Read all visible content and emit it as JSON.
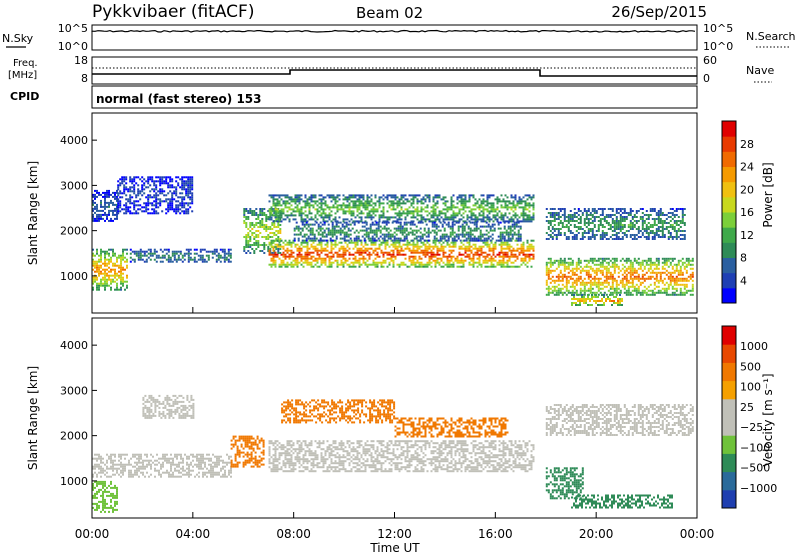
{
  "header": {
    "station": "Pykkvibaer (fitACF)",
    "beam": "Beam 02",
    "date": "26/Sep/2015"
  },
  "nsky_panel": {
    "label": "N.Sky",
    "right_label": "N.Search",
    "y_ticks_left": [
      "10^5",
      "10^0"
    ],
    "y_ticks_right": [
      "10^5",
      "10^0"
    ]
  },
  "freq_panel": {
    "label_line1": "Freq.",
    "label_line2": "[MHz]",
    "right_label": "Nave",
    "y_ticks_left": [
      "18",
      "8"
    ],
    "y_ticks_right": [
      "60",
      "0"
    ]
  },
  "cpid_panel": {
    "label": "CPID",
    "text": "normal (fast stereo) 153"
  },
  "chart_data": [
    {
      "type": "heatmap",
      "name": "power",
      "ylabel": "Slant Range [km]",
      "xlabel": "",
      "yticks": [
        "4000",
        "3000",
        "2000",
        "1000"
      ],
      "ylim": [
        180,
        4600
      ],
      "colorbar": {
        "label": "Power [dB]",
        "ticks": [
          "28",
          "24",
          "20",
          "16",
          "12",
          "8",
          "4"
        ],
        "colors": [
          "#0000ff",
          "#1e3fb4",
          "#2a5fa0",
          "#2e8b57",
          "#3fa94a",
          "#7ccf3a",
          "#c8d81e",
          "#f0c010",
          "#f59a00",
          "#f06a00",
          "#e83a00",
          "#e00000"
        ]
      },
      "bands": [
        {
          "start_h": 0.0,
          "end_h": 1.0,
          "range_km": [
            2200,
            2900
          ],
          "level": 0.2
        },
        {
          "start_h": 0.0,
          "end_h": 1.4,
          "range_km": [
            700,
            1600
          ],
          "level": 0.75
        },
        {
          "start_h": 1.0,
          "end_h": 4.0,
          "range_km": [
            2400,
            3200
          ],
          "level": 0.15
        },
        {
          "start_h": 1.5,
          "end_h": 5.5,
          "range_km": [
            1300,
            1600
          ],
          "level": 0.3
        },
        {
          "start_h": 6.0,
          "end_h": 7.5,
          "range_km": [
            1500,
            2500
          ],
          "level": 0.55
        },
        {
          "start_h": 7.0,
          "end_h": 17.5,
          "range_km": [
            2200,
            2800
          ],
          "level": 0.45
        },
        {
          "start_h": 7.0,
          "end_h": 17.5,
          "range_km": [
            1200,
            1800
          ],
          "level": 0.9
        },
        {
          "start_h": 8.0,
          "end_h": 17.0,
          "range_km": [
            1800,
            2200
          ],
          "level": 0.35
        },
        {
          "start_h": 18.0,
          "end_h": 23.5,
          "range_km": [
            1800,
            2500
          ],
          "level": 0.35
        },
        {
          "start_h": 18.0,
          "end_h": 23.8,
          "range_km": [
            600,
            1400
          ],
          "level": 0.8
        },
        {
          "start_h": 19.0,
          "end_h": 21.0,
          "range_km": [
            350,
            600
          ],
          "level": 0.7
        }
      ]
    },
    {
      "type": "heatmap",
      "name": "velocity",
      "ylabel": "Slant Range [km]",
      "xlabel": "Time UT",
      "x_ticks": [
        "00:00",
        "04:00",
        "08:00",
        "12:00",
        "16:00",
        "20:00",
        "00:00"
      ],
      "yticks": [
        "4000",
        "3000",
        "2000",
        "1000"
      ],
      "ylim": [
        180,
        4600
      ],
      "colorbar": {
        "label": "Velocity [m s⁻¹]",
        "ticks": [
          "1000",
          "500",
          "100",
          "25",
          "−25",
          "−100",
          "−500",
          "−1000"
        ],
        "colors": [
          "#1f3fb0",
          "#2a6a9a",
          "#2e8b57",
          "#6fc23a",
          "#c0c0b8",
          "#c0c0b8",
          "#f5a000",
          "#f07800",
          "#e84800",
          "#e00000"
        ]
      },
      "bands": [
        {
          "start_h": 0.0,
          "end_h": 5.5,
          "range_km": [
            1100,
            1600
          ],
          "color": "#c0c0b8"
        },
        {
          "start_h": 0.0,
          "end_h": 1.0,
          "range_km": [
            300,
            1000
          ],
          "color": "#6fc23a"
        },
        {
          "start_h": 2.0,
          "end_h": 4.0,
          "range_km": [
            2400,
            2900
          ],
          "color": "#c0c0b8"
        },
        {
          "start_h": 5.5,
          "end_h": 6.8,
          "range_km": [
            1300,
            2000
          ],
          "color": "#f07800"
        },
        {
          "start_h": 7.0,
          "end_h": 17.5,
          "range_km": [
            1200,
            1900
          ],
          "color": "#c0c0b8"
        },
        {
          "start_h": 7.5,
          "end_h": 12.0,
          "range_km": [
            2300,
            2800
          ],
          "color": "#f07800"
        },
        {
          "start_h": 12.0,
          "end_h": 16.5,
          "range_km": [
            2000,
            2400
          ],
          "color": "#f07800"
        },
        {
          "start_h": 18.0,
          "end_h": 19.5,
          "range_km": [
            600,
            1300
          ],
          "color": "#2e8b57"
        },
        {
          "start_h": 18.0,
          "end_h": 23.8,
          "range_km": [
            2000,
            2700
          ],
          "color": "#c0c0b8"
        },
        {
          "start_h": 19.0,
          "end_h": 23.0,
          "range_km": [
            400,
            700
          ],
          "color": "#2e8b57"
        }
      ]
    }
  ]
}
